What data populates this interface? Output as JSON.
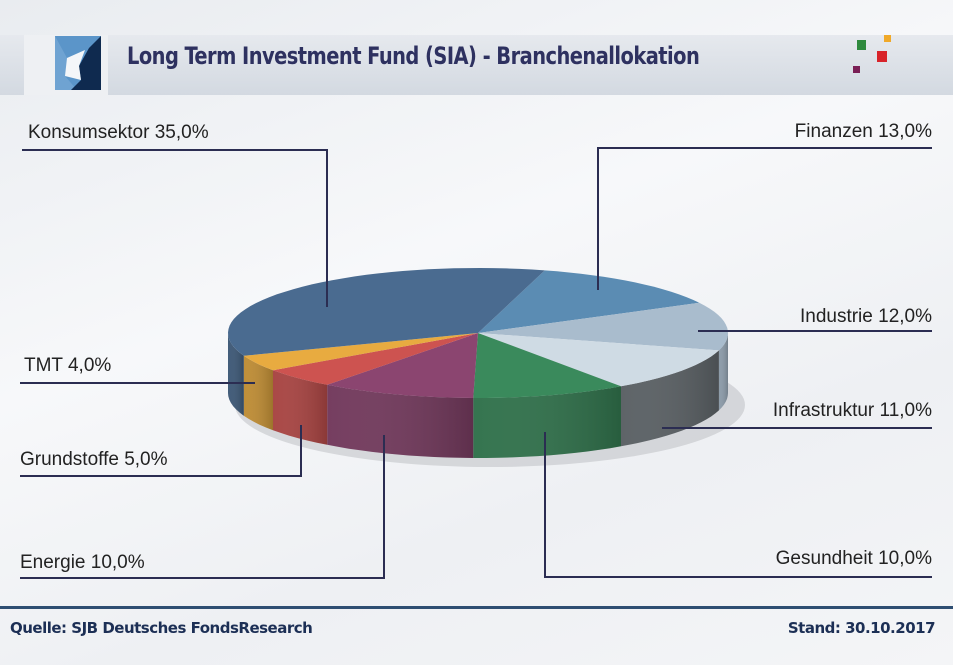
{
  "header": {
    "title": "Long Term Investment Fund (SIA) - Branchenallokation"
  },
  "footer": {
    "source": "Quelle: SJB Deutsches FondsResearch",
    "date": "Stand: 30.10.2017"
  },
  "chart_data": {
    "type": "pie",
    "title": "Long Term Investment Fund (SIA) - Branchenallokation",
    "style": "3d",
    "slices": [
      {
        "name": "Finanzen",
        "value": 13.0,
        "label": "Finanzen 13,0%",
        "color": "#5b8cb3"
      },
      {
        "name": "Industrie",
        "value": 12.0,
        "label": "Industrie 12,0%",
        "color": "#a9bccd"
      },
      {
        "name": "Infrastruktur",
        "value": 11.0,
        "label": "Infrastruktur 11,0%",
        "color": "#cfdbe4"
      },
      {
        "name": "Gesundheit",
        "value": 10.0,
        "label": "Gesundheit 10,0%",
        "color": "#3a8a5c"
      },
      {
        "name": "Energie",
        "value": 10.0,
        "label": "Energie 10,0%",
        "color": "#8b4570"
      },
      {
        "name": "Grundstoffe",
        "value": 5.0,
        "label": "Grundstoffe 5,0%",
        "color": "#cd5350"
      },
      {
        "name": "TMT",
        "value": 4.0,
        "label": "TMT 4,0%",
        "color": "#e8ab40"
      },
      {
        "name": "Konsumsektor",
        "value": 35.0,
        "label": "Konsumsektor 35,0%",
        "color": "#4a6b90"
      }
    ]
  }
}
